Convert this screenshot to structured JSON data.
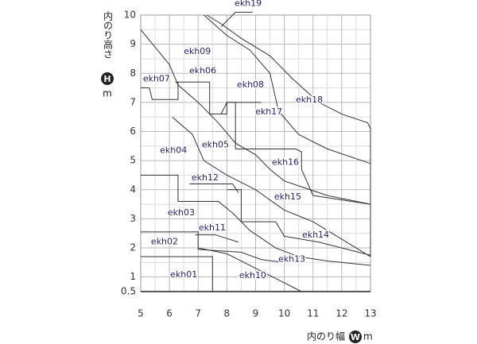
{
  "chart_data": {
    "type": "region-map",
    "xlabel": "内のり幅",
    "xlabel_badge": "W",
    "xlabel_unit": "m",
    "ylabel": "内のり高さ",
    "ylabel_badge": "H",
    "ylabel_unit": "m",
    "xlim": [
      5,
      13
    ],
    "ylim": [
      0.5,
      10
    ],
    "xticks": [
      5,
      6,
      7,
      8,
      9,
      10,
      11,
      12,
      13
    ],
    "yticks": [
      0.5,
      1,
      2,
      3,
      4,
      5,
      6,
      7,
      8,
      9,
      10
    ],
    "x_minor": [
      5.5,
      6.5,
      7.5,
      8.5,
      9.5,
      10.5,
      11.5,
      12.5
    ],
    "y_minor": [
      1.5,
      2.5,
      3.5,
      4.5,
      5.5,
      6.5,
      7.5,
      8.5,
      9.5
    ],
    "grid": true,
    "boundaries": [
      {
        "x": [
          5,
          7.5,
          7.5
        ],
        "y": [
          1.7,
          1.7,
          0.5
        ]
      },
      {
        "x": [
          5,
          7,
          7,
          8.5,
          9.2,
          10
        ],
        "y": [
          2.55,
          2.55,
          1.95,
          1.85,
          1.6,
          1.5
        ]
      },
      {
        "x": [
          7,
          8,
          9,
          9.8,
          10.6
        ],
        "y": [
          2.0,
          1.8,
          1.3,
          0.9,
          0.5
        ]
      },
      {
        "x": [
          6.9,
          7.6,
          8.4
        ],
        "y": [
          2.45,
          2.45,
          2.2
        ]
      },
      {
        "x": [
          5,
          6.3,
          6.3,
          7.7,
          8.2,
          8.8,
          9.7,
          10.5,
          11.5,
          13
        ],
        "y": [
          4.5,
          4.5,
          3.6,
          3.6,
          3.2,
          2.6,
          2.0,
          1.7,
          1.55,
          1.4
        ]
      },
      {
        "x": [
          8,
          8.5,
          8.5,
          9.7,
          10,
          11.2,
          13
        ],
        "y": [
          4,
          4,
          2.9,
          2.9,
          2.4,
          2.2,
          1.75
        ]
      },
      {
        "x": [
          6.7,
          8.2,
          8.4
        ],
        "y": [
          4.2,
          4.2,
          3.9
        ]
      },
      {
        "x": [
          6.1,
          6.8,
          7.2,
          8,
          9,
          10,
          11,
          12,
          13
        ],
        "y": [
          6.5,
          5.9,
          5.0,
          4.5,
          4.0,
          3.3,
          2.9,
          2.3,
          1.7
        ]
      },
      {
        "x": [
          5,
          5.3,
          5.4,
          6.3,
          6.3
        ],
        "y": [
          7.5,
          7.5,
          7.1,
          7.1,
          7.7
        ]
      },
      {
        "x": [
          5,
          5.5,
          6,
          6.3,
          7,
          7.7,
          8.3,
          9,
          9.5,
          10,
          11.5,
          13
        ],
        "y": [
          9.5,
          8.9,
          8.3,
          7.6,
          7.0,
          6.3,
          5.6,
          5.2,
          4.7,
          4.3,
          3.8,
          3.5
        ]
      },
      {
        "x": [
          6.2,
          7.4,
          7.4,
          8,
          8,
          8.3,
          8.3,
          10.4,
          10.6,
          10.6,
          11,
          13
        ],
        "y": [
          7.7,
          7.7,
          6.6,
          6.6,
          7.0,
          7.0,
          5.4,
          5.4,
          5.3,
          4.7,
          3.8,
          3.5
        ]
      },
      {
        "x": [
          7.8,
          8,
          9.2
        ],
        "y": [
          6.6,
          7,
          7
        ]
      },
      {
        "x": [
          7.2,
          8,
          8.8,
          9.5,
          9.8,
          10.5,
          11.5,
          13
        ],
        "y": [
          10,
          9.3,
          8.8,
          8.0,
          6.7,
          5.9,
          5.4,
          4.9
        ]
      },
      {
        "x": [
          7.3,
          7.8,
          8.5,
          9.5,
          10.3,
          11.2,
          12,
          12.9,
          13,
          13
        ],
        "y": [
          10,
          9.7,
          9.2,
          8.6,
          7.8,
          7.0,
          6.6,
          6.3,
          6.1,
          1.7
        ]
      },
      {
        "x": [
          7.8,
          8.3,
          8.9
        ],
        "y": [
          9.6,
          10.1,
          10.1
        ]
      }
    ],
    "regions": [
      {
        "label": "ekh01",
        "x": 6.5,
        "y": 1.07
      },
      {
        "label": "ekh02",
        "x": 5.83,
        "y": 2.2
      },
      {
        "label": "ekh03",
        "x": 6.41,
        "y": 3.2
      },
      {
        "label": "ekh04",
        "x": 6.14,
        "y": 5.34
      },
      {
        "label": "ekh05",
        "x": 7.6,
        "y": 5.53
      },
      {
        "label": "ekh06",
        "x": 7.16,
        "y": 8.07
      },
      {
        "label": "ekh07",
        "x": 5.55,
        "y": 7.8
      },
      {
        "label": "ekh08",
        "x": 8.82,
        "y": 7.6
      },
      {
        "label": "ekh09",
        "x": 6.97,
        "y": 8.75
      },
      {
        "label": "ekh10",
        "x": 8.9,
        "y": 1.05
      },
      {
        "label": "ekh11",
        "x": 7.49,
        "y": 2.69
      },
      {
        "label": "ekh12",
        "x": 7.24,
        "y": 4.4
      },
      {
        "label": "ekh13",
        "x": 10.26,
        "y": 1.6
      },
      {
        "label": "ekh14",
        "x": 11.09,
        "y": 2.44
      },
      {
        "label": "ekh15",
        "x": 10.12,
        "y": 3.75
      },
      {
        "label": "ekh16",
        "x": 10.04,
        "y": 4.93
      },
      {
        "label": "ekh17",
        "x": 9.46,
        "y": 6.67
      },
      {
        "label": "ekh18",
        "x": 10.87,
        "y": 7.08
      },
      {
        "label": "ekh19",
        "x": 8.74,
        "y": 10.4
      }
    ]
  }
}
